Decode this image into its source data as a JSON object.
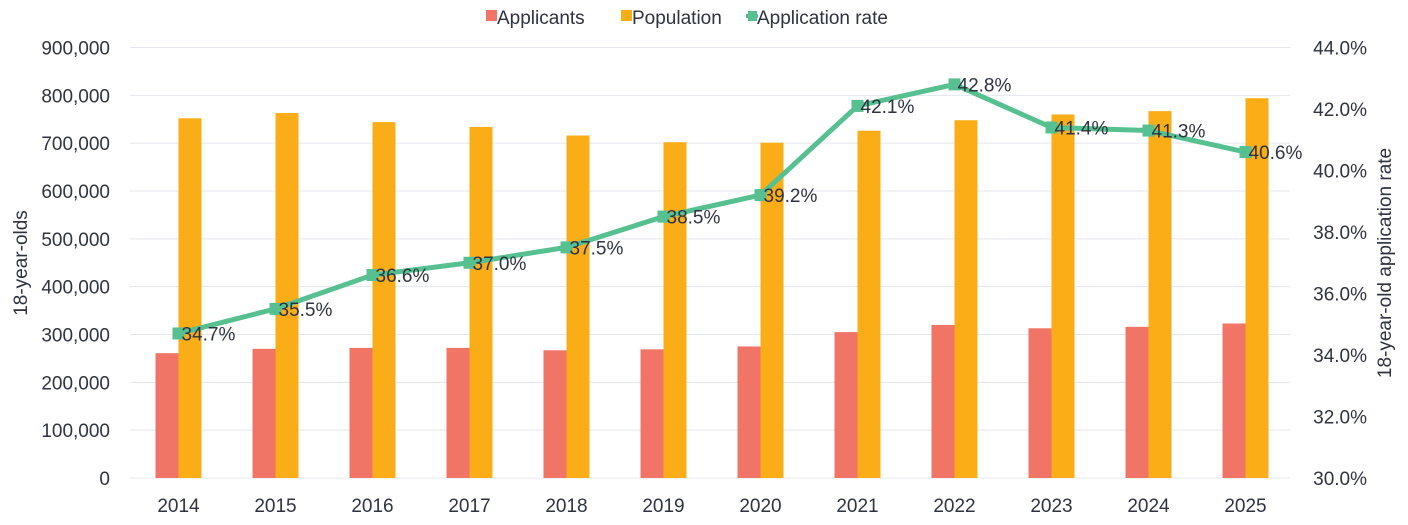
{
  "chart_data": {
    "type": "bar",
    "title": "",
    "categories": [
      "2014",
      "2015",
      "2016",
      "2017",
      "2018",
      "2019",
      "2020",
      "2021",
      "2022",
      "2023",
      "2024",
      "2025"
    ],
    "series": [
      {
        "name": "Applicants",
        "kind": "bar",
        "axis": "left",
        "color": "#f07566",
        "values": [
          261000,
          270000,
          272000,
          272000,
          267000,
          269000,
          275000,
          305000,
          320000,
          313000,
          316000,
          323000
        ]
      },
      {
        "name": "Population",
        "kind": "bar",
        "axis": "left",
        "color": "#fbad18",
        "values": [
          752000,
          763000,
          744000,
          734000,
          716000,
          702000,
          701000,
          726000,
          748000,
          760000,
          767000,
          794000
        ]
      },
      {
        "name": "Application rate",
        "kind": "line",
        "axis": "right",
        "color": "#56c091",
        "values": [
          34.7,
          35.5,
          36.6,
          37.0,
          37.5,
          38.5,
          39.2,
          42.1,
          42.8,
          41.4,
          41.3,
          40.6
        ],
        "labels": [
          "34.7%",
          "35.5%",
          "36.6%",
          "37.0%",
          "37.5%",
          "38.5%",
          "39.2%",
          "42.1%",
          "42.8%",
          "41.4%",
          "41.3%",
          "40.6%"
        ]
      }
    ],
    "ylabel": "18-year-olds",
    "ylabel_right": "18-year-old application rate",
    "xlabel": "",
    "ylim": [
      0,
      900000
    ],
    "ylim_right": [
      30.0,
      44.0
    ],
    "yticks": [
      0,
      100000,
      200000,
      300000,
      400000,
      500000,
      600000,
      700000,
      800000,
      900000
    ],
    "ytick_labels": [
      "0",
      "100,000",
      "200,000",
      "300,000",
      "400,000",
      "500,000",
      "600,000",
      "700,000",
      "800,000",
      "900,000"
    ],
    "yticks_right": [
      30,
      32,
      34,
      36,
      38,
      40,
      42,
      44
    ],
    "ytick_labels_right": [
      "30.0%",
      "32.0%",
      "34.0%",
      "36.0%",
      "38.0%",
      "40.0%",
      "42.0%",
      "44.0%"
    ],
    "grid": true,
    "legend": {
      "position": "top-center",
      "entries": [
        "Applicants",
        "Population",
        "Application rate"
      ]
    }
  }
}
